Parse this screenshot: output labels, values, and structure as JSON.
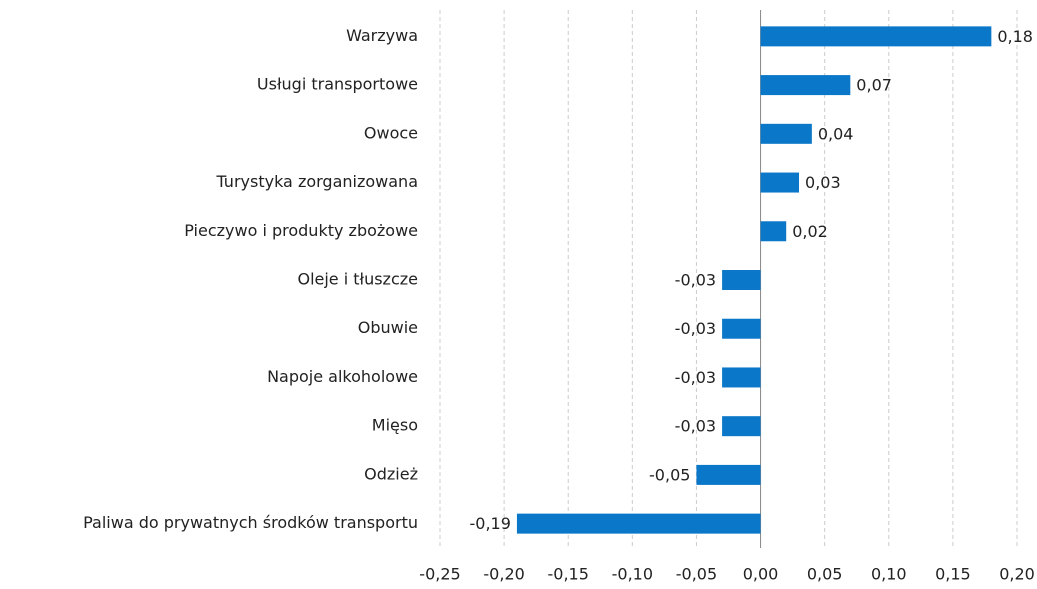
{
  "chart_data": {
    "type": "bar",
    "orientation": "horizontal",
    "categories": [
      "Warzywa",
      "Usługi transportowe",
      "Owoce",
      "Turystyka zorganizowana",
      "Pieczywo i produkty zbożowe",
      "Oleje i tłuszcze",
      "Obuwie",
      "Napoje alkoholowe",
      "Mięso",
      "Odzież",
      "Paliwa do prywatnych środków transportu"
    ],
    "values": [
      0.18,
      0.07,
      0.04,
      0.03,
      0.02,
      -0.03,
      -0.03,
      -0.03,
      -0.03,
      -0.05,
      -0.19
    ],
    "value_labels": [
      "0,18",
      "0,07",
      "0,04",
      "0,03",
      "0,02",
      "-0,03",
      "-0,03",
      "-0,03",
      "-0,03",
      "-0,05",
      "-0,19"
    ],
    "color": "#0b77c8",
    "xlim": [
      -0.25,
      0.2
    ],
    "xticks": [
      {
        "value": -0.25,
        "label": "-0,25"
      },
      {
        "value": -0.2,
        "label": "-0,20"
      },
      {
        "value": -0.15,
        "label": "-0,15"
      },
      {
        "value": -0.1,
        "label": "-0,10"
      },
      {
        "value": -0.05,
        "label": "-0,05"
      },
      {
        "value": 0,
        "label": "0,00"
      },
      {
        "value": 0.05,
        "label": "0,05"
      },
      {
        "value": 0.1,
        "label": "0,10"
      },
      {
        "value": 0.15,
        "label": "0,15"
      },
      {
        "value": 0.2,
        "label": "0,20"
      }
    ],
    "grid": true
  }
}
